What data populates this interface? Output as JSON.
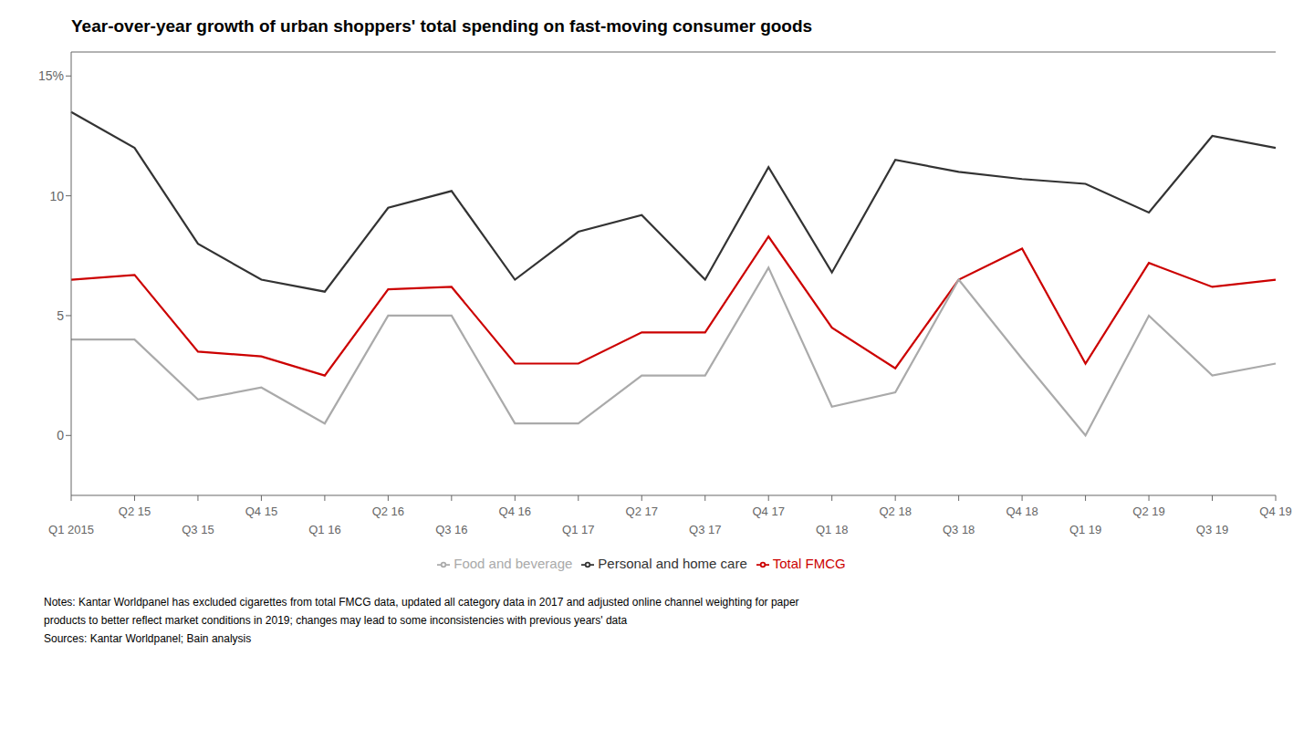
{
  "chart_data": {
    "type": "line",
    "title": "Year-over-year growth of urban shoppers' total spending on fast-moving consumer goods",
    "categories": [
      "Q1 2015",
      "Q2 15",
      "Q3 15",
      "Q4 15",
      "Q1 16",
      "Q2 16",
      "Q3 16",
      "Q4 16",
      "Q1 17",
      "Q2 17",
      "Q3 17",
      "Q4 17",
      "Q1 18",
      "Q2 18",
      "Q3 18",
      "Q4 18",
      "Q1 19",
      "Q2 19",
      "Q3 19",
      "Q4 19"
    ],
    "series": [
      {
        "name": "Total FMCG",
        "color": "#cc0000",
        "values": [
          6.5,
          6.7,
          3.5,
          3.3,
          2.5,
          6.1,
          6.2,
          3.0,
          3.0,
          4.3,
          4.3,
          8.3,
          4.5,
          2.8,
          6.5,
          7.8,
          3.0,
          7.2,
          6.2,
          6.5
        ]
      },
      {
        "name": "Food and beverage",
        "color": "#aaaaaa",
        "values": [
          4.0,
          4.0,
          1.5,
          2.0,
          0.5,
          5.0,
          5.0,
          0.5,
          0.5,
          2.5,
          2.5,
          7.0,
          1.2,
          1.8,
          6.5,
          3.2,
          0.0,
          5.0,
          2.5,
          3.0
        ]
      },
      {
        "name": "Personal and home care",
        "color": "#333333",
        "values": [
          13.5,
          12.0,
          8.0,
          6.5,
          6.0,
          9.5,
          10.2,
          6.5,
          8.5,
          9.2,
          6.5,
          11.2,
          6.8,
          11.5,
          11.0,
          10.7,
          10.5,
          9.3,
          12.5,
          12.0
        ]
      }
    ],
    "ylim": [
      -2.5,
      16
    ],
    "yticks": [
      0,
      5,
      10,
      {
        "value": 15,
        "label": "15%"
      }
    ],
    "grid": false,
    "annotations": [
      "Notes: Kantar Worldpanel has excluded cigarettes from total FMCG data, updated all category data in 2017 and adjusted online channel weighting for paper",
      "products to better reflect market conditions in 2019; changes may lead to some inconsistencies with previous years' data",
      "Sources: Kantar Worldpanel; Bain analysis"
    ]
  }
}
